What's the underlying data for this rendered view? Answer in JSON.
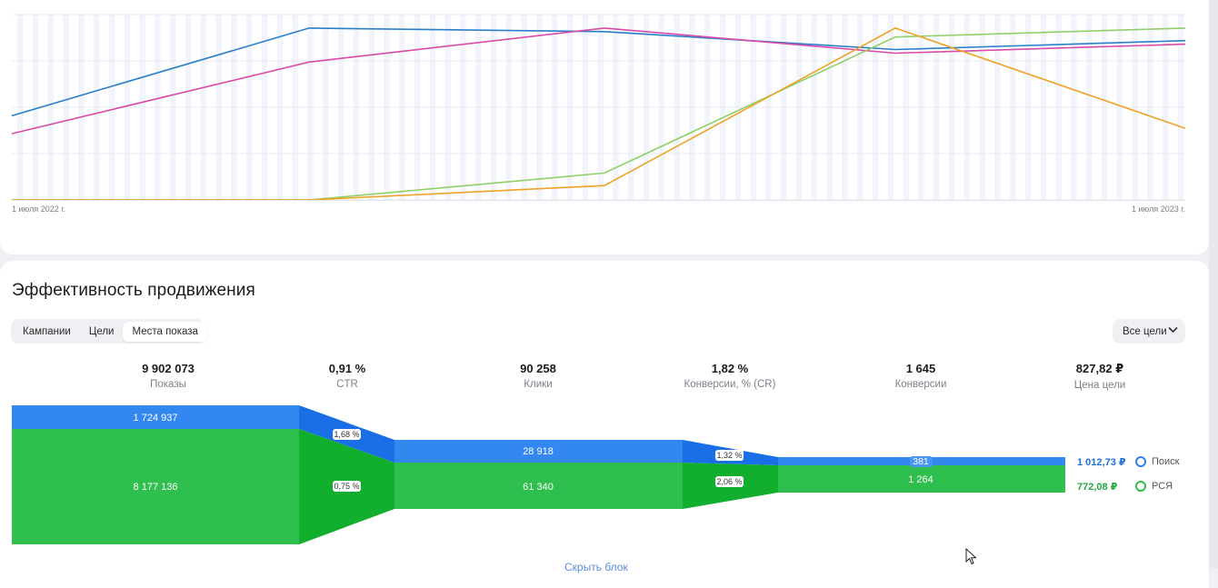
{
  "chart_data": [
    {
      "type": "line",
      "x": [
        "1 июля 2022 г.",
        "",
        "",
        "",
        "1 июля 2023 г."
      ],
      "series": [
        {
          "color": "#2a7fc9",
          "values": [
            47,
            96,
            94,
            84,
            89
          ]
        },
        {
          "color": "#d84ba8",
          "values": [
            37,
            77,
            96,
            82,
            87
          ]
        },
        {
          "color": "#8fd068",
          "values": [
            0,
            0,
            15,
            91,
            96
          ]
        },
        {
          "color": "#eea226",
          "values": [
            0,
            0,
            8,
            96,
            40
          ]
        }
      ],
      "ylim": [
        0,
        100
      ],
      "grid": true
    },
    {
      "type": "area",
      "stages": [
        "Показы",
        "Клики",
        "Конверсии"
      ],
      "series": [
        {
          "name": "Поиск",
          "color": "#3388f0",
          "values": [
            1724937,
            28918,
            381
          ],
          "rates": [
            "1,68 %",
            "1,32 %"
          ],
          "price": "1 012,73 ₽"
        },
        {
          "name": "РСЯ",
          "color": "#2fbf4f",
          "values": [
            8177136,
            61340,
            1264
          ],
          "rates": [
            "0,75 %",
            "2,06 %"
          ],
          "price": "772,08 ₽"
        }
      ]
    }
  ],
  "chart": {
    "x_start_label": "1 июля 2022 г.",
    "x_end_label": "1 июля 2023 г."
  },
  "section": {
    "title": "Эффективность продвижения"
  },
  "tabs": [
    "Кампании",
    "Цели",
    "Места показа"
  ],
  "active_tab": "Места показа",
  "goal_dropdown": {
    "label": "Все цели",
    "icon": "chevron-down-icon"
  },
  "metrics": [
    {
      "value": "9 902 073",
      "label": "Показы"
    },
    {
      "value": "0,91 %",
      "label": "CTR"
    },
    {
      "value": "90 258",
      "label": "Клики"
    },
    {
      "value": "1,82 %",
      "label": "Конверсии, % (CR)"
    },
    {
      "value": "1 645",
      "label": "Конверсии"
    },
    {
      "value": "827,82 ₽",
      "label": "Цена цели"
    }
  ],
  "funnel": {
    "search": {
      "shows": "1 724 937",
      "ctr": "1,68 %",
      "clicks": "28 918",
      "cr": "1,32 %",
      "conv": "381",
      "price": "1 012,73 ₽",
      "legend": "Поиск",
      "color": "#3388f0"
    },
    "rsya": {
      "shows": "8 177 136",
      "ctr": "0,75 %",
      "clicks": "61 340",
      "cr": "2,06 %",
      "conv": "1 264",
      "price": "772,08 ₽",
      "legend": "РСЯ",
      "color": "#2fbf4f"
    }
  },
  "bottom_link": "Скрыть блок"
}
